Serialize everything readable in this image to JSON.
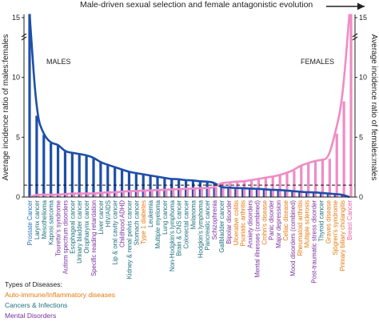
{
  "chart_data": {
    "type": "bar",
    "title": "Male-driven sexual selection and female antagonistic evolution",
    "ylabel_left": "Average incidence ratio of males:females",
    "ylabel_right": "Average incidence ratio of females:males",
    "ylim": [
      0,
      15
    ],
    "yticks": [
      0,
      5,
      10,
      15
    ],
    "reference_line": 1,
    "annotations": {
      "males": "MALES",
      "females": "FEMALES"
    },
    "legend_title": "Types of Diseases:",
    "categories_types": {
      "auto": "Auto-immune/Inflammatory diseases",
      "cancer": "Cancers & Infections",
      "mental": "Mental Disorders"
    },
    "colors": {
      "male_bar": "#1f4fa8",
      "female_bar": "#f08cc4",
      "auto": "#e7780d",
      "cancer": "#1d6f80",
      "mental": "#7a2fa0",
      "endpoint_male": "#1f6fc0",
      "endpoint_female": "#e85fa6"
    },
    "categories": [
      {
        "label": "Prostate Cancer",
        "type": "endpoint_male",
        "male": 15.5,
        "female": 0
      },
      {
        "label": "Larynx cancer",
        "type": "cancer",
        "male": 6.8,
        "female": 0.2
      },
      {
        "label": "Mesothelioma",
        "type": "cancer",
        "male": 5.2,
        "female": 0.2
      },
      {
        "label": "Kaposi sarcoma",
        "type": "cancer",
        "male": 4.5,
        "female": 0.2
      },
      {
        "label": "Tourette's syndrome",
        "type": "mental",
        "male": 4.4,
        "female": 0.2
      },
      {
        "label": "Autism spectrum disorders",
        "type": "mental",
        "male": 3.8,
        "female": 0.25
      },
      {
        "label": "Esophageal cancer",
        "type": "cancer",
        "male": 3.7,
        "female": 0.3
      },
      {
        "label": "Urinary bladder cancer",
        "type": "cancer",
        "male": 3.6,
        "female": 0.3
      },
      {
        "label": "Oropharynx cancer",
        "type": "cancer",
        "male": 3.5,
        "female": 0.3
      },
      {
        "label": "Specific reading retardation",
        "type": "mental",
        "male": 3.3,
        "female": 0.3
      },
      {
        "label": "Liver cancer",
        "type": "cancer",
        "male": 2.9,
        "female": 0.35
      },
      {
        "label": "HIV/AIDS",
        "type": "cancer",
        "male": 2.7,
        "female": 0.4
      },
      {
        "label": "Lip & oral cavity cancer",
        "type": "cancer",
        "male": 2.5,
        "female": 0.4
      },
      {
        "label": "Childhood ADHD",
        "type": "mental",
        "male": 2.3,
        "female": 0.45
      },
      {
        "label": "Kidney & renal pelvis cancer",
        "type": "cancer",
        "male": 2.1,
        "female": 0.5
      },
      {
        "label": "Stomach cancer",
        "type": "cancer",
        "male": 2.0,
        "female": 0.5
      },
      {
        "label": "Type 1 diabetes",
        "type": "auto",
        "male": 1.9,
        "female": 0.55
      },
      {
        "label": "Leukemia",
        "type": "cancer",
        "male": 1.8,
        "female": 0.55
      },
      {
        "label": "Multiple myeloma",
        "type": "cancer",
        "male": 1.7,
        "female": 0.6
      },
      {
        "label": "Lung cancer",
        "type": "cancer",
        "male": 1.6,
        "female": 0.6
      },
      {
        "label": "Non-Hodgkin's lymphoma",
        "type": "cancer",
        "male": 1.5,
        "female": 0.65
      },
      {
        "label": "Brain & CNS cancer",
        "type": "cancer",
        "male": 1.5,
        "female": 0.65
      },
      {
        "label": "Colorectal cancer",
        "type": "cancer",
        "male": 1.4,
        "female": 0.7
      },
      {
        "label": "Melanoma",
        "type": "cancer",
        "male": 1.4,
        "female": 0.7
      },
      {
        "label": "Hodgkin's lymphoma",
        "type": "cancer",
        "male": 1.3,
        "female": 0.75
      },
      {
        "label": "Pancreatic cancer",
        "type": "cancer",
        "male": 1.3,
        "female": 0.75
      },
      {
        "label": "Schizophrenia",
        "type": "mental",
        "male": 1.2,
        "female": 0.8
      },
      {
        "label": "Gallbladder cancer",
        "type": "cancer",
        "male": 0.8,
        "female": 1.2
      },
      {
        "label": "Bipolar disorder",
        "type": "mental",
        "male": 0.8,
        "female": 1.2
      },
      {
        "label": "Ulcerative colitis",
        "type": "auto",
        "male": 0.75,
        "female": 1.3
      },
      {
        "label": "Psoriatic arthritis",
        "type": "auto",
        "male": 0.75,
        "female": 1.3
      },
      {
        "label": "Anxiety disorders",
        "type": "mental",
        "male": 0.7,
        "female": 1.4
      },
      {
        "label": "Mental illnesses (combined)",
        "type": "mental",
        "male": 0.7,
        "female": 1.5
      },
      {
        "label": "Crohn's disease",
        "type": "auto",
        "male": 0.65,
        "female": 1.6
      },
      {
        "label": "Panic disorder",
        "type": "mental",
        "male": 0.6,
        "female": 1.7
      },
      {
        "label": "Major depression",
        "type": "mental",
        "male": 0.6,
        "female": 1.8
      },
      {
        "label": "Celiac disease",
        "type": "auto",
        "male": 0.55,
        "female": 2.0
      },
      {
        "label": "Mood disorders (combined)",
        "type": "mental",
        "male": 0.5,
        "female": 2.2
      },
      {
        "label": "Rheumatoid arthritis",
        "type": "auto",
        "male": 0.45,
        "female": 2.6
      },
      {
        "label": "Multiple sclerosis",
        "type": "auto",
        "male": 0.4,
        "female": 2.8
      },
      {
        "label": "Post-traumatic stress disorder",
        "type": "mental",
        "male": 0.4,
        "female": 3.0
      },
      {
        "label": "Thyroid cancer",
        "type": "cancer",
        "male": 0.35,
        "female": 3.1
      },
      {
        "label": "Graves disease",
        "type": "auto",
        "male": 0.3,
        "female": 3.2
      },
      {
        "label": "Sjögren's syndrome",
        "type": "auto",
        "male": 0.25,
        "female": 5.3
      },
      {
        "label": "Primary biliary cholangitis",
        "type": "auto",
        "male": 0.2,
        "female": 8.0
      },
      {
        "label": "Breast Cancer",
        "type": "endpoint_female",
        "male": 0,
        "female": 15.5
      }
    ]
  }
}
